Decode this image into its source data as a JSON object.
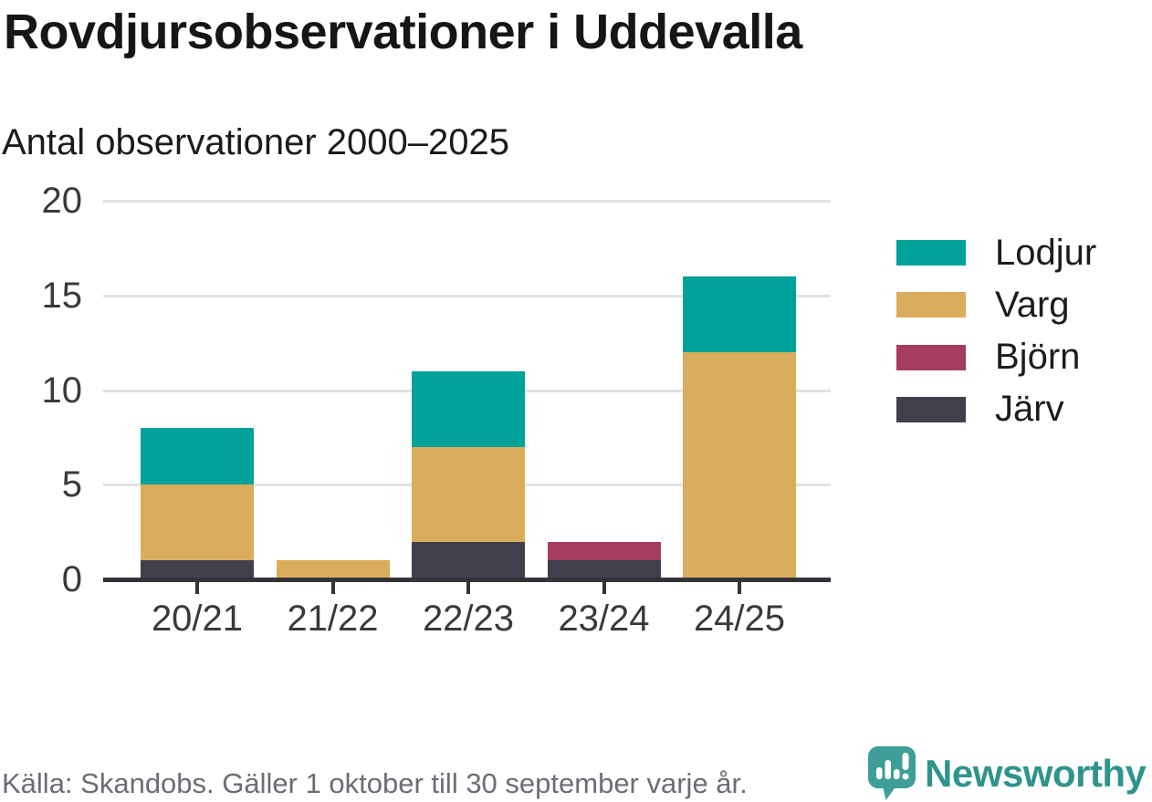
{
  "chart_data": {
    "type": "bar",
    "stacked": true,
    "title": "Rovdjursobservationer i Uddevalla",
    "subtitle": "Antal observationer 2000–2025",
    "categories": [
      "20/21",
      "21/22",
      "22/23",
      "23/24",
      "24/25"
    ],
    "series": [
      {
        "name": "Järv",
        "color": "#423f4c",
        "values": [
          1,
          0,
          2,
          1,
          0
        ]
      },
      {
        "name": "Björn",
        "color": "#a73d5e",
        "values": [
          0,
          0,
          0,
          1,
          0
        ]
      },
      {
        "name": "Varg",
        "color": "#d9ad5b",
        "values": [
          4,
          1,
          5,
          0,
          12
        ]
      },
      {
        "name": "Lodjur",
        "color": "#00a299",
        "values": [
          3,
          0,
          4,
          0,
          4
        ]
      }
    ],
    "stack_order": "bottom-to-top",
    "totals": [
      8,
      1,
      11,
      2,
      16
    ],
    "ylim": [
      0,
      20
    ],
    "yticks": [
      0,
      5,
      10,
      15,
      20
    ],
    "xlabel": "",
    "ylabel": "",
    "grid": "horizontal",
    "legend_position": "right",
    "legend_order": [
      "Lodjur",
      "Varg",
      "Björn",
      "Järv"
    ]
  },
  "footer": {
    "source": "Källa: Skandobs. Gäller 1 oktober till 30 september varje år.",
    "brand": "Newsworthy",
    "logo_icon": "newsworthy-speech-bubble-bar-chart-icon"
  },
  "colors": {
    "background": "#ffffff",
    "title_text": "#161616",
    "axis_text": "#3a3a3a",
    "axis_line": "#35333a",
    "gridline": "#e3e3e3",
    "source_text": "#6a6e74",
    "brand_teal": "#2e948d",
    "logo_teal": "#3f9e98"
  }
}
